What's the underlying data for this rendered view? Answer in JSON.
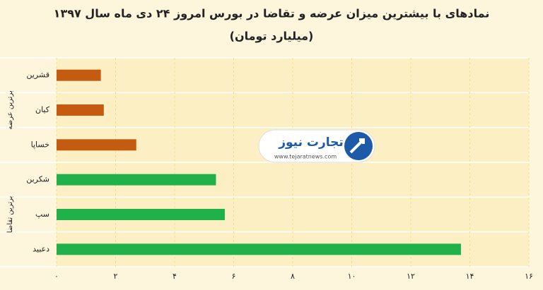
{
  "chart_data": {
    "type": "bar",
    "orientation": "horizontal",
    "title": "نمادهای با بیشترین میزان عرضه و تقاضا در بورس امروز ۲۴ دی ماه سال ۱۳۹۷",
    "subtitle": "(میلیارد تومان)",
    "categories": [
      "قشرین",
      "کیان",
      "خساپا",
      "شکربن",
      "سپ",
      "دعبید"
    ],
    "series": [
      {
        "name": "برترین عرضه",
        "color": "#c55a11",
        "values": [
          1.5,
          1.6,
          2.7,
          null,
          null,
          null
        ]
      },
      {
        "name": "برترین تقاضا",
        "color": "#21b14b",
        "values": [
          null,
          null,
          null,
          5.4,
          5.7,
          13.7
        ]
      }
    ],
    "xlim": [
      0,
      16
    ],
    "xticks": [
      {
        "value": 0,
        "label": "۰"
      },
      {
        "value": 2,
        "label": "۲"
      },
      {
        "value": 4,
        "label": "۴"
      },
      {
        "value": 6,
        "label": "۶"
      },
      {
        "value": 8,
        "label": "۸"
      },
      {
        "value": 10,
        "label": "۱۰"
      },
      {
        "value": 12,
        "label": "۱۲"
      },
      {
        "value": 14,
        "label": "۱۴"
      },
      {
        "value": 16,
        "label": "۱۶"
      }
    ],
    "grid": true
  },
  "watermark": {
    "brand": "تجارت نیوز",
    "url": "www.tejaratnews.com"
  }
}
